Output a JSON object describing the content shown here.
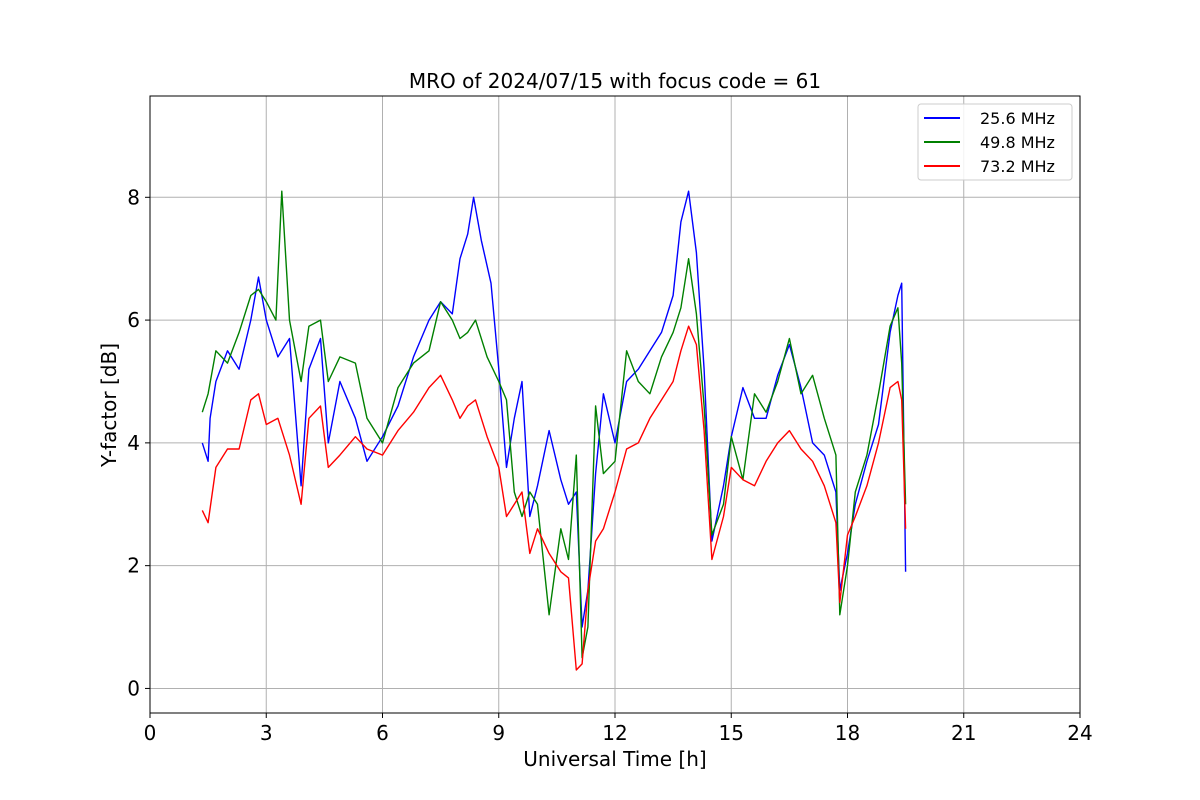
{
  "chart_data": {
    "type": "line",
    "title": "MRO of 2024/07/15 with focus code = 61",
    "xlabel": "Universal Time [h]",
    "ylabel": "Y-factor [dB]",
    "xlim": [
      0,
      24
    ],
    "ylim": [
      -0.4,
      9.65
    ],
    "xticks": [
      0,
      3,
      6,
      9,
      12,
      15,
      18,
      21,
      24
    ],
    "yticks": [
      0,
      2,
      4,
      6,
      8
    ],
    "grid": true,
    "legend_position": "top-right",
    "series": [
      {
        "name": "25.6 MHz",
        "color": "#0000ff",
        "x": [
          1.35,
          1.5,
          1.55,
          1.7,
          2.0,
          2.3,
          2.6,
          2.8,
          3.0,
          3.3,
          3.6,
          3.9,
          4.1,
          4.4,
          4.6,
          4.9,
          5.3,
          5.6,
          6.0,
          6.4,
          6.8,
          7.2,
          7.5,
          7.8,
          8.0,
          8.2,
          8.35,
          8.55,
          8.8,
          9.0,
          9.2,
          9.4,
          9.6,
          9.8,
          10.0,
          10.3,
          10.6,
          10.8,
          11.0,
          11.15,
          11.3,
          11.5,
          11.7,
          12.0,
          12.3,
          12.6,
          12.9,
          13.2,
          13.5,
          13.7,
          13.9,
          14.1,
          14.3,
          14.5,
          14.8,
          15.0,
          15.3,
          15.6,
          15.9,
          16.2,
          16.5,
          16.8,
          17.1,
          17.4,
          17.7,
          17.8,
          18.0,
          18.2,
          18.5,
          18.8,
          19.1,
          19.3,
          19.4,
          19.5
        ],
        "y": [
          4.0,
          3.7,
          4.4,
          5.0,
          5.5,
          5.2,
          6.0,
          6.7,
          6.0,
          5.4,
          5.7,
          3.3,
          5.2,
          5.7,
          4.0,
          5.0,
          4.4,
          3.7,
          4.1,
          4.6,
          5.4,
          6.0,
          6.3,
          6.1,
          7.0,
          7.4,
          8.0,
          7.3,
          6.6,
          5.2,
          3.6,
          4.4,
          5.0,
          2.8,
          3.3,
          4.2,
          3.4,
          3.0,
          3.2,
          1.0,
          1.6,
          3.5,
          4.8,
          4.0,
          5.0,
          5.2,
          5.5,
          5.8,
          6.4,
          7.6,
          8.1,
          7.1,
          5.2,
          2.4,
          3.3,
          4.1,
          4.9,
          4.4,
          4.4,
          5.1,
          5.6,
          4.9,
          4.0,
          3.8,
          3.2,
          1.6,
          2.2,
          3.0,
          3.7,
          4.3,
          5.8,
          6.4,
          6.6,
          1.9
        ]
      },
      {
        "name": "49.8 MHz",
        "color": "#008000",
        "x": [
          1.35,
          1.5,
          1.7,
          2.0,
          2.3,
          2.6,
          2.8,
          3.0,
          3.25,
          3.4,
          3.6,
          3.9,
          4.1,
          4.4,
          4.6,
          4.9,
          5.3,
          5.6,
          6.0,
          6.4,
          6.8,
          7.2,
          7.5,
          7.8,
          8.0,
          8.2,
          8.4,
          8.7,
          9.0,
          9.2,
          9.4,
          9.6,
          9.8,
          10.0,
          10.3,
          10.6,
          10.8,
          11.0,
          11.15,
          11.3,
          11.5,
          11.7,
          12.0,
          12.3,
          12.6,
          12.9,
          13.2,
          13.5,
          13.7,
          13.9,
          14.1,
          14.3,
          14.5,
          14.8,
          15.0,
          15.3,
          15.6,
          15.9,
          16.2,
          16.5,
          16.8,
          17.1,
          17.4,
          17.7,
          17.8,
          18.0,
          18.2,
          18.5,
          18.8,
          19.1,
          19.3,
          19.4,
          19.5
        ],
        "y": [
          4.5,
          4.8,
          5.5,
          5.3,
          5.8,
          6.4,
          6.5,
          6.3,
          6.0,
          8.1,
          6.0,
          5.0,
          5.9,
          6.0,
          5.0,
          5.4,
          5.3,
          4.4,
          4.0,
          4.9,
          5.3,
          5.5,
          6.3,
          6.0,
          5.7,
          5.8,
          6.0,
          5.4,
          5.0,
          4.7,
          3.2,
          2.8,
          3.2,
          3.0,
          1.2,
          2.6,
          2.1,
          3.8,
          0.5,
          1.0,
          4.6,
          3.5,
          3.7,
          5.5,
          5.0,
          4.8,
          5.4,
          5.8,
          6.2,
          7.0,
          6.1,
          4.6,
          2.5,
          3.0,
          4.1,
          3.4,
          4.8,
          4.5,
          5.0,
          5.7,
          4.8,
          5.1,
          4.4,
          3.8,
          1.2,
          2.0,
          3.2,
          3.8,
          4.8,
          5.9,
          6.2,
          5.3,
          3.0
        ]
      },
      {
        "name": "73.2 MHz",
        "color": "#ff0000",
        "x": [
          1.35,
          1.5,
          1.7,
          2.0,
          2.3,
          2.6,
          2.8,
          3.0,
          3.3,
          3.6,
          3.9,
          4.1,
          4.4,
          4.6,
          4.9,
          5.3,
          5.6,
          6.0,
          6.4,
          6.8,
          7.2,
          7.5,
          7.8,
          8.0,
          8.2,
          8.4,
          8.7,
          9.0,
          9.2,
          9.4,
          9.6,
          9.8,
          10.0,
          10.3,
          10.6,
          10.8,
          11.0,
          11.15,
          11.3,
          11.5,
          11.7,
          12.0,
          12.3,
          12.6,
          12.9,
          13.2,
          13.5,
          13.7,
          13.9,
          14.1,
          14.3,
          14.5,
          14.8,
          15.0,
          15.3,
          15.6,
          15.9,
          16.2,
          16.5,
          16.8,
          17.1,
          17.4,
          17.7,
          17.8,
          18.0,
          18.2,
          18.5,
          18.8,
          19.1,
          19.3,
          19.4,
          19.5
        ],
        "y": [
          2.9,
          2.7,
          3.6,
          3.9,
          3.9,
          4.7,
          4.8,
          4.3,
          4.4,
          3.8,
          3.0,
          4.4,
          4.6,
          3.6,
          3.8,
          4.1,
          3.9,
          3.8,
          4.2,
          4.5,
          4.9,
          5.1,
          4.7,
          4.4,
          4.6,
          4.7,
          4.1,
          3.6,
          2.8,
          3.0,
          3.2,
          2.2,
          2.6,
          2.2,
          1.9,
          1.8,
          0.3,
          0.4,
          1.6,
          2.4,
          2.6,
          3.2,
          3.9,
          4.0,
          4.4,
          4.7,
          5.0,
          5.5,
          5.9,
          5.6,
          4.2,
          2.1,
          2.8,
          3.6,
          3.4,
          3.3,
          3.7,
          4.0,
          4.2,
          3.9,
          3.7,
          3.3,
          2.7,
          1.4,
          2.5,
          2.8,
          3.3,
          4.0,
          4.9,
          5.0,
          4.7,
          2.6
        ]
      }
    ]
  }
}
